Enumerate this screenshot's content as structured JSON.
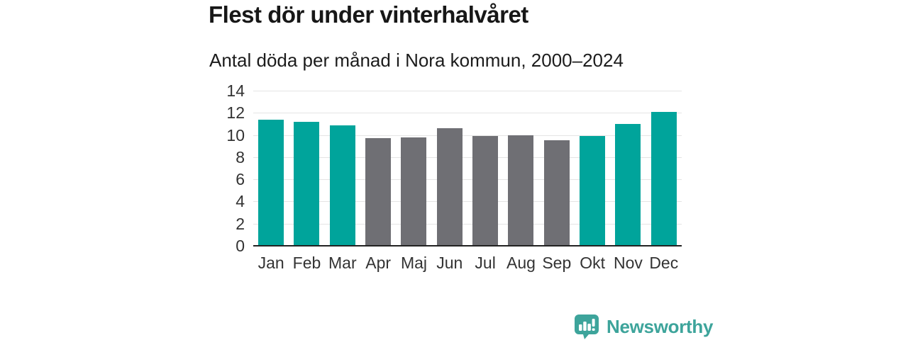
{
  "chart_data": {
    "type": "bar",
    "title": "Flest dör under vinterhalvåret",
    "subtitle": "Antal döda per månad i Nora kommun, 2000–2024",
    "categories": [
      "Jan",
      "Feb",
      "Mar",
      "Apr",
      "Maj",
      "Jun",
      "Jul",
      "Aug",
      "Sep",
      "Okt",
      "Nov",
      "Dec"
    ],
    "values": [
      11.4,
      11.2,
      10.9,
      9.7,
      9.8,
      10.6,
      9.9,
      10.0,
      9.5,
      9.9,
      11.0,
      12.1
    ],
    "bar_groups": [
      "winter",
      "winter",
      "winter",
      "summer",
      "summer",
      "summer",
      "summer",
      "summer",
      "summer",
      "winter",
      "winter",
      "winter"
    ],
    "group_colors": {
      "winter": "#00a49b",
      "summer": "#6f6f74"
    },
    "xlabel": "",
    "ylabel": "",
    "ylim": [
      0,
      14
    ],
    "yticks": [
      0,
      2,
      4,
      6,
      8,
      10,
      12,
      14
    ],
    "grid": "horizontal",
    "legend": "none"
  },
  "footer": {
    "brand": "Newsworthy",
    "brand_color": "#3da49b",
    "logo_icon": "speech-bubble-bar-chart-icon"
  },
  "colors": {
    "background": "#ffffff",
    "title_text": "#171717",
    "axis_text": "#333333",
    "gridline": "#e4e4e4",
    "baseline": "#222222"
  }
}
